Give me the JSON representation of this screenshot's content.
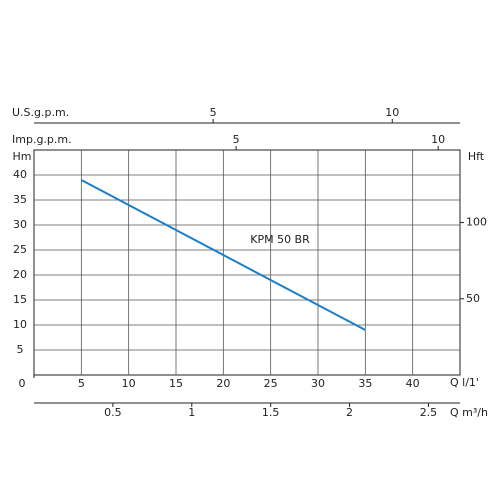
{
  "chart_data": {
    "type": "line",
    "y_label": "Hm",
    "y2_label": "Hft",
    "x_label": "Q  l/1'",
    "xlim": [
      0,
      45
    ],
    "xticks": [
      0,
      5,
      10,
      15,
      20,
      25,
      30,
      35,
      40
    ],
    "ylim": [
      0,
      45
    ],
    "yticks": [
      5,
      10,
      15,
      20,
      25,
      30,
      35,
      40
    ],
    "y2lim": [
      0,
      147.6
    ],
    "y2ticks": [
      50,
      100
    ],
    "grid": true,
    "series": [
      {
        "name": "KPM 50 BR",
        "color": "#1a7fc8",
        "x": [
          5,
          35
        ],
        "values": [
          39,
          9
        ]
      }
    ],
    "extra_x_axes": [
      {
        "label": "Q  m³/h",
        "position": "bottom",
        "xlim": [
          0,
          2.7
        ],
        "xticks": [
          0.5,
          1,
          1.5,
          2,
          2.5
        ]
      },
      {
        "label": "U.S.g.p.m.",
        "position": "top",
        "xlim": [
          0,
          11.89
        ],
        "xticks": [
          5,
          10
        ]
      },
      {
        "label": "Imp.g.p.m.",
        "position": "top",
        "xlim": [
          0,
          10.54
        ],
        "xticks": [
          5,
          10
        ]
      }
    ]
  }
}
